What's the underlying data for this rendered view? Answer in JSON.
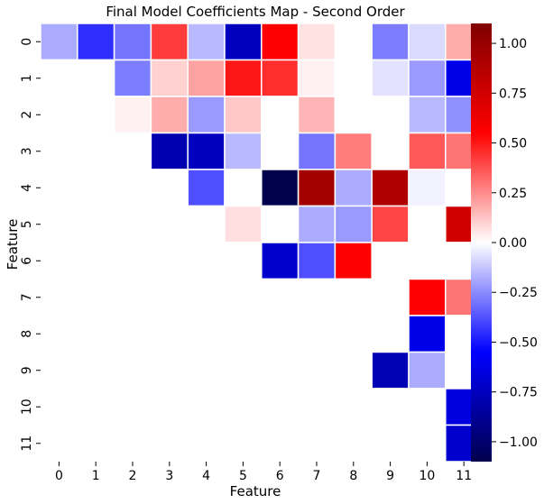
{
  "chart_data": {
    "type": "heatmap",
    "title": "Final Model Coefficients Map - Second Order",
    "xlabel": "Feature",
    "ylabel": "Feature",
    "x_tick_labels": [
      "0",
      "1",
      "2",
      "3",
      "4",
      "5",
      "6",
      "7",
      "8",
      "9",
      "10",
      "11"
    ],
    "y_tick_labels": [
      "0",
      "1",
      "2",
      "3",
      "4",
      "5",
      "6",
      "7",
      "8",
      "9",
      "10",
      "11"
    ],
    "colormap": "seismic",
    "vmin": -1.1,
    "vmax": 1.1,
    "colorbar_ticks": [
      1.0,
      0.75,
      0.5,
      0.25,
      0.0,
      -0.25,
      -0.5,
      -0.75,
      -1.0
    ],
    "colorbar_tick_labels": [
      "1.00",
      "0.75",
      "0.50",
      "0.25",
      "0.00",
      "−0.25",
      "−0.50",
      "−0.75",
      "−1.00"
    ],
    "values": [
      [
        -0.18,
        -0.45,
        -0.3,
        0.42,
        -0.15,
        -0.75,
        0.55,
        0.06,
        0.0,
        -0.28,
        -0.08,
        0.18
      ],
      [
        0.0,
        0.0,
        -0.28,
        0.1,
        0.2,
        0.5,
        0.45,
        0.03,
        0.0,
        -0.06,
        -0.22,
        -0.62
      ],
      [
        0.0,
        0.0,
        0.03,
        0.18,
        -0.22,
        0.12,
        0.0,
        0.16,
        0.0,
        0.0,
        -0.15,
        -0.24
      ],
      [
        0.0,
        0.0,
        0.0,
        -0.8,
        -0.75,
        -0.15,
        0.0,
        -0.3,
        0.28,
        0.0,
        0.36,
        0.3
      ],
      [
        0.0,
        0.0,
        0.0,
        0.0,
        -0.38,
        0.0,
        -1.1,
        0.95,
        -0.18,
        0.9,
        -0.03,
        0.0
      ],
      [
        0.0,
        0.0,
        0.0,
        0.0,
        0.0,
        0.07,
        0.0,
        -0.18,
        -0.22,
        0.4,
        0.0,
        0.75
      ],
      [
        0.0,
        0.0,
        0.0,
        0.0,
        0.0,
        0.0,
        -0.7,
        -0.38,
        0.55,
        0.0,
        0.0,
        0.0
      ],
      [
        0.0,
        0.0,
        0.0,
        0.0,
        0.0,
        0.0,
        0.0,
        0.0,
        0.0,
        0.0,
        0.55,
        0.3
      ],
      [
        0.0,
        0.0,
        0.0,
        0.0,
        0.0,
        0.0,
        0.0,
        0.0,
        0.0,
        0.0,
        -0.62,
        0.0
      ],
      [
        0.0,
        0.0,
        0.0,
        0.0,
        0.0,
        0.0,
        0.0,
        0.0,
        0.0,
        -0.78,
        -0.18,
        0.0
      ],
      [
        0.0,
        0.0,
        0.0,
        0.0,
        0.0,
        0.0,
        0.0,
        0.0,
        0.0,
        0.0,
        0.0,
        -0.65
      ],
      [
        0.0,
        0.0,
        0.0,
        0.0,
        0.0,
        0.0,
        0.0,
        0.0,
        0.0,
        0.0,
        0.0,
        -0.7
      ]
    ]
  }
}
